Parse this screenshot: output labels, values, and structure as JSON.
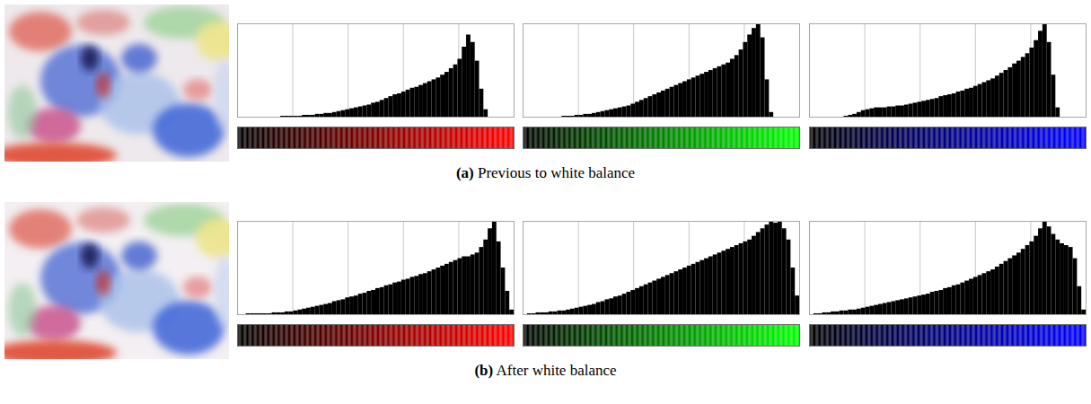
{
  "chart_data": [
    {
      "type": "histogram",
      "color": "#000000",
      "grid": true,
      "tick_labels": false,
      "xlim": [
        0,
        256
      ],
      "xticks": [
        51.2,
        102.4,
        153.6,
        204.8
      ],
      "ylim": [
        0,
        100
      ],
      "bins": [
        0,
        4,
        8,
        12,
        16,
        20,
        24,
        28,
        32,
        36,
        40,
        44,
        48,
        52,
        56,
        60,
        64,
        68,
        72,
        76,
        80,
        84,
        88,
        92,
        96,
        100,
        104,
        108,
        112,
        116,
        120,
        124,
        128,
        132,
        136,
        140,
        144,
        148,
        152,
        156,
        160,
        164,
        168,
        172,
        176,
        180,
        184,
        188,
        192,
        196,
        200,
        204,
        208,
        212,
        216,
        220,
        224,
        228,
        232,
        236,
        240,
        244,
        248,
        252,
        256
      ],
      "values": [
        0,
        0,
        0,
        0,
        0,
        0,
        0,
        0,
        0,
        0,
        1,
        1,
        1,
        1,
        1,
        2,
        2,
        2,
        3,
        3,
        4,
        4,
        5,
        6,
        7,
        8,
        9,
        10,
        11,
        12,
        13,
        15,
        16,
        18,
        20,
        22,
        24,
        25,
        27,
        29,
        31,
        32,
        34,
        36,
        38,
        40,
        42,
        45,
        48,
        52,
        56,
        62,
        75,
        88,
        80,
        60,
        30,
        8,
        0,
        0,
        0,
        0,
        0,
        0
      ],
      "color_bar": {
        "range": [
          0,
          255
        ],
        "colors": [
          "#000000",
          "#ff0000"
        ]
      }
    },
    {
      "type": "histogram",
      "color": "#000000",
      "grid": true,
      "tick_labels": false,
      "xlim": [
        0,
        256
      ],
      "xticks": [
        51.2,
        102.4,
        153.6,
        204.8
      ],
      "ylim": [
        0,
        100
      ],
      "bins": [
        0,
        4,
        8,
        12,
        16,
        20,
        24,
        28,
        32,
        36,
        40,
        44,
        48,
        52,
        56,
        60,
        64,
        68,
        72,
        76,
        80,
        84,
        88,
        92,
        96,
        100,
        104,
        108,
        112,
        116,
        120,
        124,
        128,
        132,
        136,
        140,
        144,
        148,
        152,
        156,
        160,
        164,
        168,
        172,
        176,
        180,
        184,
        188,
        192,
        196,
        200,
        204,
        208,
        212,
        216,
        220,
        224,
        228,
        232,
        236,
        240,
        244,
        248,
        252,
        256
      ],
      "values": [
        0,
        0,
        0,
        0,
        0,
        0,
        0,
        0,
        0,
        1,
        1,
        1,
        2,
        2,
        3,
        3,
        4,
        5,
        6,
        7,
        8,
        9,
        10,
        11,
        12,
        14,
        16,
        18,
        20,
        22,
        24,
        26,
        28,
        30,
        32,
        34,
        36,
        38,
        40,
        42,
        44,
        46,
        48,
        50,
        52,
        54,
        56,
        58,
        62,
        66,
        72,
        80,
        88,
        95,
        100,
        85,
        40,
        5,
        0,
        0,
        0,
        0,
        0,
        0
      ],
      "color_bar": {
        "range": [
          0,
          255
        ],
        "colors": [
          "#000000",
          "#00ff00"
        ]
      }
    },
    {
      "type": "histogram",
      "color": "#000000",
      "grid": true,
      "tick_labels": false,
      "xlim": [
        0,
        256
      ],
      "xticks": [
        51.2,
        102.4,
        153.6,
        204.8
      ],
      "ylim": [
        0,
        100
      ],
      "bins": [
        0,
        4,
        8,
        12,
        16,
        20,
        24,
        28,
        32,
        36,
        40,
        44,
        48,
        52,
        56,
        60,
        64,
        68,
        72,
        76,
        80,
        84,
        88,
        92,
        96,
        100,
        104,
        108,
        112,
        116,
        120,
        124,
        128,
        132,
        136,
        140,
        144,
        148,
        152,
        156,
        160,
        164,
        168,
        172,
        176,
        180,
        184,
        188,
        192,
        196,
        200,
        204,
        208,
        212,
        216,
        220,
        224,
        228,
        232,
        236,
        240,
        244,
        248,
        252,
        256
      ],
      "values": [
        0,
        0,
        0,
        0,
        0,
        0,
        0,
        0,
        1,
        2,
        3,
        5,
        7,
        8,
        9,
        10,
        10,
        10,
        11,
        11,
        12,
        12,
        13,
        14,
        15,
        16,
        17,
        18,
        19,
        20,
        22,
        23,
        24,
        25,
        27,
        28,
        30,
        31,
        33,
        35,
        37,
        39,
        41,
        44,
        47,
        50,
        53,
        57,
        60,
        64,
        68,
        74,
        82,
        92,
        100,
        80,
        45,
        10,
        0,
        0,
        0,
        0,
        0,
        0
      ],
      "color_bar": {
        "range": [
          0,
          255
        ],
        "colors": [
          "#000000",
          "#0000ff"
        ]
      }
    },
    {
      "type": "histogram",
      "color": "#000000",
      "grid": true,
      "tick_labels": false,
      "xlim": [
        0,
        256
      ],
      "xticks": [
        51.2,
        102.4,
        153.6,
        204.8
      ],
      "ylim": [
        0,
        100
      ],
      "bins": [
        0,
        4,
        8,
        12,
        16,
        20,
        24,
        28,
        32,
        36,
        40,
        44,
        48,
        52,
        56,
        60,
        64,
        68,
        72,
        76,
        80,
        84,
        88,
        92,
        96,
        100,
        104,
        108,
        112,
        116,
        120,
        124,
        128,
        132,
        136,
        140,
        144,
        148,
        152,
        156,
        160,
        164,
        168,
        172,
        176,
        180,
        184,
        188,
        192,
        196,
        200,
        204,
        208,
        212,
        216,
        220,
        224,
        228,
        232,
        236,
        240,
        244,
        248,
        252,
        256
      ],
      "values": [
        0,
        0,
        1,
        1,
        1,
        1,
        1,
        1,
        2,
        2,
        2,
        3,
        3,
        4,
        5,
        6,
        7,
        8,
        9,
        10,
        11,
        12,
        14,
        15,
        16,
        18,
        19,
        20,
        22,
        23,
        25,
        26,
        28,
        29,
        31,
        32,
        34,
        35,
        37,
        38,
        40,
        41,
        43,
        44,
        46,
        48,
        50,
        52,
        54,
        56,
        58,
        60,
        62,
        62,
        64,
        66,
        72,
        80,
        92,
        100,
        78,
        50,
        25,
        5
      ],
      "color_bar": {
        "range": [
          0,
          255
        ],
        "colors": [
          "#000000",
          "#ff0000"
        ]
      }
    },
    {
      "type": "histogram",
      "color": "#000000",
      "grid": true,
      "tick_labels": false,
      "xlim": [
        0,
        256
      ],
      "xticks": [
        51.2,
        102.4,
        153.6,
        204.8
      ],
      "ylim": [
        0,
        100
      ],
      "bins": [
        0,
        4,
        8,
        12,
        16,
        20,
        24,
        28,
        32,
        36,
        40,
        44,
        48,
        52,
        56,
        60,
        64,
        68,
        72,
        76,
        80,
        84,
        88,
        92,
        96,
        100,
        104,
        108,
        112,
        116,
        120,
        124,
        128,
        132,
        136,
        140,
        144,
        148,
        152,
        156,
        160,
        164,
        168,
        172,
        176,
        180,
        184,
        188,
        192,
        196,
        200,
        204,
        208,
        212,
        216,
        220,
        224,
        228,
        232,
        236,
        240,
        244,
        248,
        252,
        256
      ],
      "values": [
        0,
        1,
        1,
        2,
        2,
        2,
        3,
        3,
        4,
        4,
        5,
        6,
        7,
        8,
        9,
        10,
        11,
        13,
        14,
        16,
        17,
        19,
        20,
        22,
        24,
        26,
        28,
        30,
        32,
        34,
        36,
        38,
        40,
        42,
        44,
        46,
        48,
        50,
        52,
        54,
        56,
        58,
        60,
        62,
        64,
        66,
        68,
        70,
        72,
        74,
        76,
        78,
        80,
        84,
        88,
        92,
        96,
        100,
        98,
        100,
        92,
        80,
        50,
        20
      ],
      "color_bar": {
        "range": [
          0,
          255
        ],
        "colors": [
          "#000000",
          "#00ff00"
        ]
      }
    },
    {
      "type": "histogram",
      "color": "#000000",
      "grid": true,
      "tick_labels": false,
      "xlim": [
        0,
        256
      ],
      "xticks": [
        51.2,
        102.4,
        153.6,
        204.8
      ],
      "ylim": [
        0,
        100
      ],
      "bins": [
        0,
        4,
        8,
        12,
        16,
        20,
        24,
        28,
        32,
        36,
        40,
        44,
        48,
        52,
        56,
        60,
        64,
        68,
        72,
        76,
        80,
        84,
        88,
        92,
        96,
        100,
        104,
        108,
        112,
        116,
        120,
        124,
        128,
        132,
        136,
        140,
        144,
        148,
        152,
        156,
        160,
        164,
        168,
        172,
        176,
        180,
        184,
        188,
        192,
        196,
        200,
        204,
        208,
        212,
        216,
        220,
        224,
        228,
        232,
        236,
        240,
        244,
        248,
        252,
        256
      ],
      "values": [
        0,
        1,
        1,
        2,
        2,
        3,
        3,
        4,
        4,
        5,
        5,
        6,
        7,
        8,
        9,
        10,
        11,
        12,
        13,
        14,
        15,
        16,
        17,
        18,
        19,
        20,
        21,
        22,
        24,
        25,
        26,
        28,
        29,
        31,
        32,
        34,
        36,
        38,
        40,
        42,
        44,
        46,
        48,
        51,
        54,
        57,
        60,
        63,
        66,
        70,
        74,
        78,
        84,
        92,
        100,
        94,
        86,
        80,
        76,
        74,
        72,
        60,
        30,
        5
      ],
      "color_bar": {
        "range": [
          0,
          255
        ],
        "colors": [
          "#000000",
          "#0000ff"
        ]
      }
    }
  ],
  "captions": [
    "(a) Previous to white balance",
    "(b) After white balance"
  ]
}
